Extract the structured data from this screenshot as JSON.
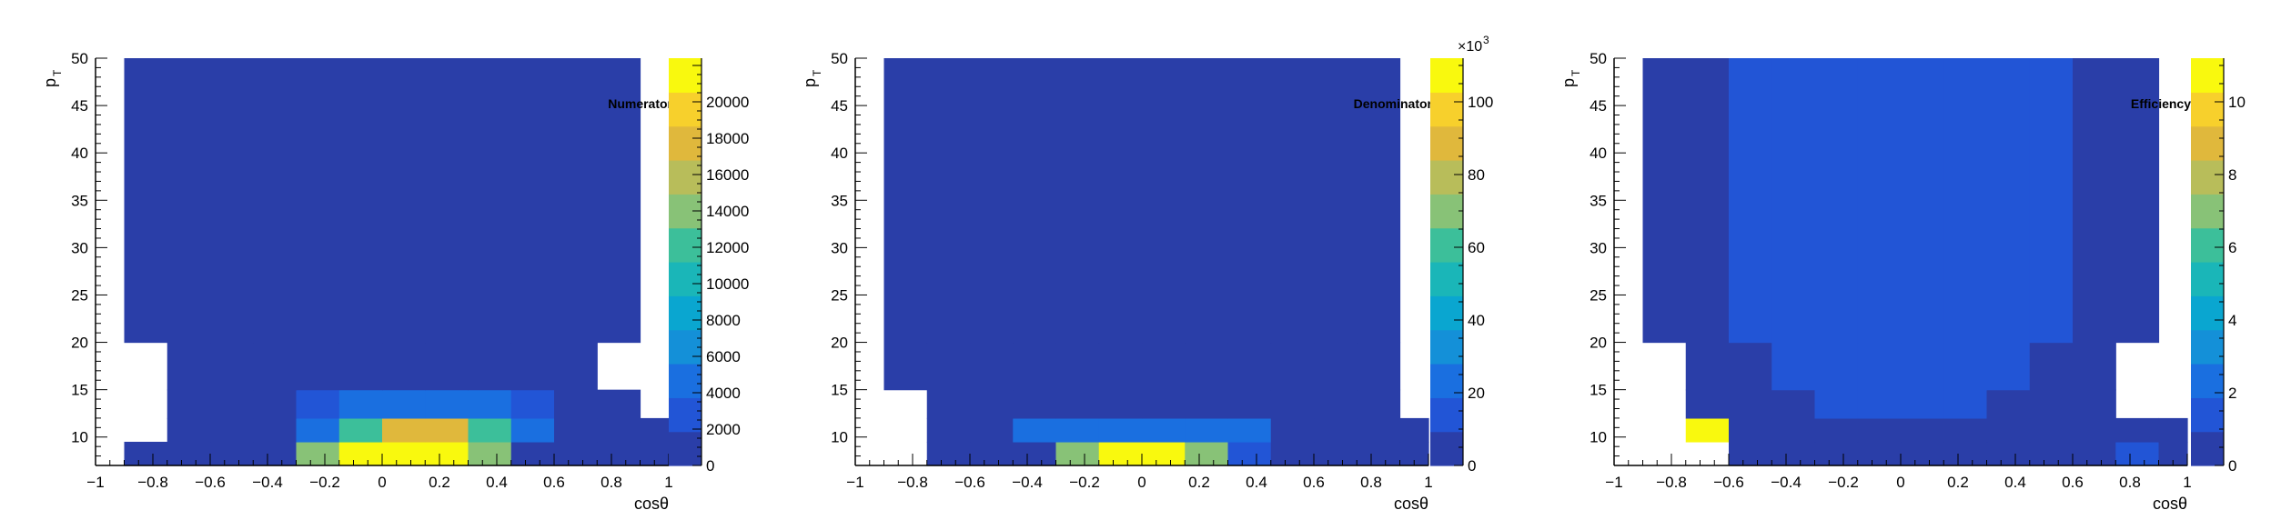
{
  "colors": {
    "c0": "#2a3ea8",
    "c1": "#2255d6",
    "c2": "#1a6fe0",
    "c3": "#1490d8",
    "c4": "#0aa6d0",
    "c5": "#1ab6b8",
    "c6": "#3cbf9a",
    "c7": "#88c277",
    "c8": "#b8bd5a",
    "c9": "#e0b83c",
    "c10": "#f7d02c",
    "c11": "#f9f90e",
    "axis": "#000000"
  },
  "chart_data": [
    {
      "type": "heatmap",
      "label": "Numerator",
      "xlabel": "cosθ",
      "ylabel": "p",
      "ylabel_sub": "T",
      "xlim": [
        -1,
        1
      ],
      "ylim": [
        7,
        50
      ],
      "x_ticks": [
        "−1",
        "−0.8",
        "−0.6",
        "−0.4",
        "−0.2",
        "0",
        "0.2",
        "0.4",
        "0.6",
        "0.8",
        "1"
      ],
      "y_ticks": [
        "10",
        "15",
        "20",
        "25",
        "30",
        "35",
        "40",
        "45",
        "50"
      ],
      "colorbar_ticks": [
        "0",
        "2000",
        "4000",
        "6000",
        "8000",
        "10000",
        "12000",
        "14000",
        "16000",
        "18000",
        "20000"
      ],
      "colorbar_multiplier": "",
      "x_edges": [
        -1,
        -0.9,
        -0.75,
        -0.6,
        -0.45,
        -0.3,
        -0.15,
        0,
        0.15,
        0.3,
        0.45,
        0.6,
        0.75,
        0.9,
        1
      ],
      "y_edges": [
        7,
        9.5,
        12,
        15,
        20,
        50
      ],
      "cells": [
        [
          null,
          0,
          0,
          0,
          0,
          7,
          11,
          11,
          11,
          7,
          0,
          0,
          0,
          0
        ],
        [
          null,
          null,
          0,
          0,
          0,
          2,
          6,
          9,
          9,
          6,
          2,
          0,
          0,
          0
        ],
        [
          null,
          null,
          0,
          0,
          0,
          1,
          2,
          2,
          2,
          2,
          1,
          0,
          0,
          null
        ],
        [
          null,
          null,
          0,
          0,
          0,
          0,
          0,
          0,
          0,
          0,
          0,
          0,
          null,
          null
        ],
        [
          null,
          0,
          0,
          0,
          0,
          0,
          0,
          0,
          0,
          0,
          0,
          0,
          0,
          null
        ]
      ]
    },
    {
      "type": "heatmap",
      "label": "Denominator",
      "xlabel": "cosθ",
      "ylabel": "p",
      "ylabel_sub": "T",
      "xlim": [
        -1,
        1
      ],
      "ylim": [
        7,
        50
      ],
      "x_ticks": [
        "−1",
        "−0.8",
        "−0.6",
        "−0.4",
        "−0.2",
        "0",
        "0.2",
        "0.4",
        "0.6",
        "0.8",
        "1"
      ],
      "y_ticks": [
        "10",
        "15",
        "20",
        "25",
        "30",
        "35",
        "40",
        "45",
        "50"
      ],
      "colorbar_ticks": [
        "0",
        "20",
        "40",
        "60",
        "80",
        "100"
      ],
      "colorbar_multiplier": "×10",
      "colorbar_multiplier_exp": "3",
      "x_edges": [
        -1,
        -0.9,
        -0.75,
        -0.6,
        -0.45,
        -0.3,
        -0.15,
        0,
        0.15,
        0.3,
        0.45,
        0.6,
        0.75,
        0.9,
        1
      ],
      "y_edges": [
        7,
        9.5,
        12,
        15,
        20,
        50
      ],
      "cells": [
        [
          null,
          null,
          0,
          0,
          0,
          7,
          11,
          11,
          7,
          1,
          0,
          0,
          0,
          0
        ],
        [
          null,
          null,
          0,
          0,
          2,
          2,
          2,
          2,
          2,
          2,
          0,
          0,
          0,
          0
        ],
        [
          null,
          null,
          0,
          0,
          0,
          0,
          0,
          0,
          0,
          0,
          0,
          0,
          0,
          null
        ],
        [
          null,
          0,
          0,
          0,
          0,
          0,
          0,
          0,
          0,
          0,
          0,
          0,
          0,
          null
        ],
        [
          null,
          0,
          0,
          0,
          0,
          0,
          0,
          0,
          0,
          0,
          0,
          0,
          0,
          null
        ]
      ]
    },
    {
      "type": "heatmap",
      "label": "Efficiency",
      "xlabel": "cosθ",
      "ylabel": "p",
      "ylabel_sub": "T",
      "xlim": [
        -1,
        1
      ],
      "ylim": [
        7,
        50
      ],
      "x_ticks": [
        "−1",
        "−0.8",
        "−0.6",
        "−0.4",
        "−0.2",
        "0",
        "0.2",
        "0.4",
        "0.6",
        "0.8",
        "1"
      ],
      "y_ticks": [
        "10",
        "15",
        "20",
        "25",
        "30",
        "35",
        "40",
        "45",
        "50"
      ],
      "colorbar_ticks": [
        "0",
        "2",
        "4",
        "6",
        "8",
        "10"
      ],
      "colorbar_multiplier": "",
      "x_edges": [
        -1,
        -0.9,
        -0.75,
        -0.6,
        -0.45,
        -0.3,
        -0.15,
        0,
        0.15,
        0.3,
        0.45,
        0.6,
        0.75,
        0.9,
        1
      ],
      "y_edges": [
        7,
        9.5,
        12,
        15,
        20,
        50
      ],
      "cells": [
        [
          null,
          null,
          null,
          0,
          0,
          0,
          0,
          0,
          0,
          0,
          0,
          0,
          1,
          0
        ],
        [
          null,
          null,
          11,
          0,
          0,
          0,
          0,
          0,
          0,
          0,
          0,
          0,
          0,
          0
        ],
        [
          null,
          null,
          0,
          0,
          0,
          1,
          1,
          1,
          1,
          0,
          0,
          0,
          null,
          null
        ],
        [
          null,
          null,
          0,
          0,
          1,
          1,
          1,
          1,
          1,
          1,
          0,
          0,
          null,
          null
        ],
        [
          null,
          0,
          0,
          1,
          1,
          1,
          1,
          1,
          1,
          1,
          1,
          0,
          0,
          null
        ]
      ]
    }
  ]
}
